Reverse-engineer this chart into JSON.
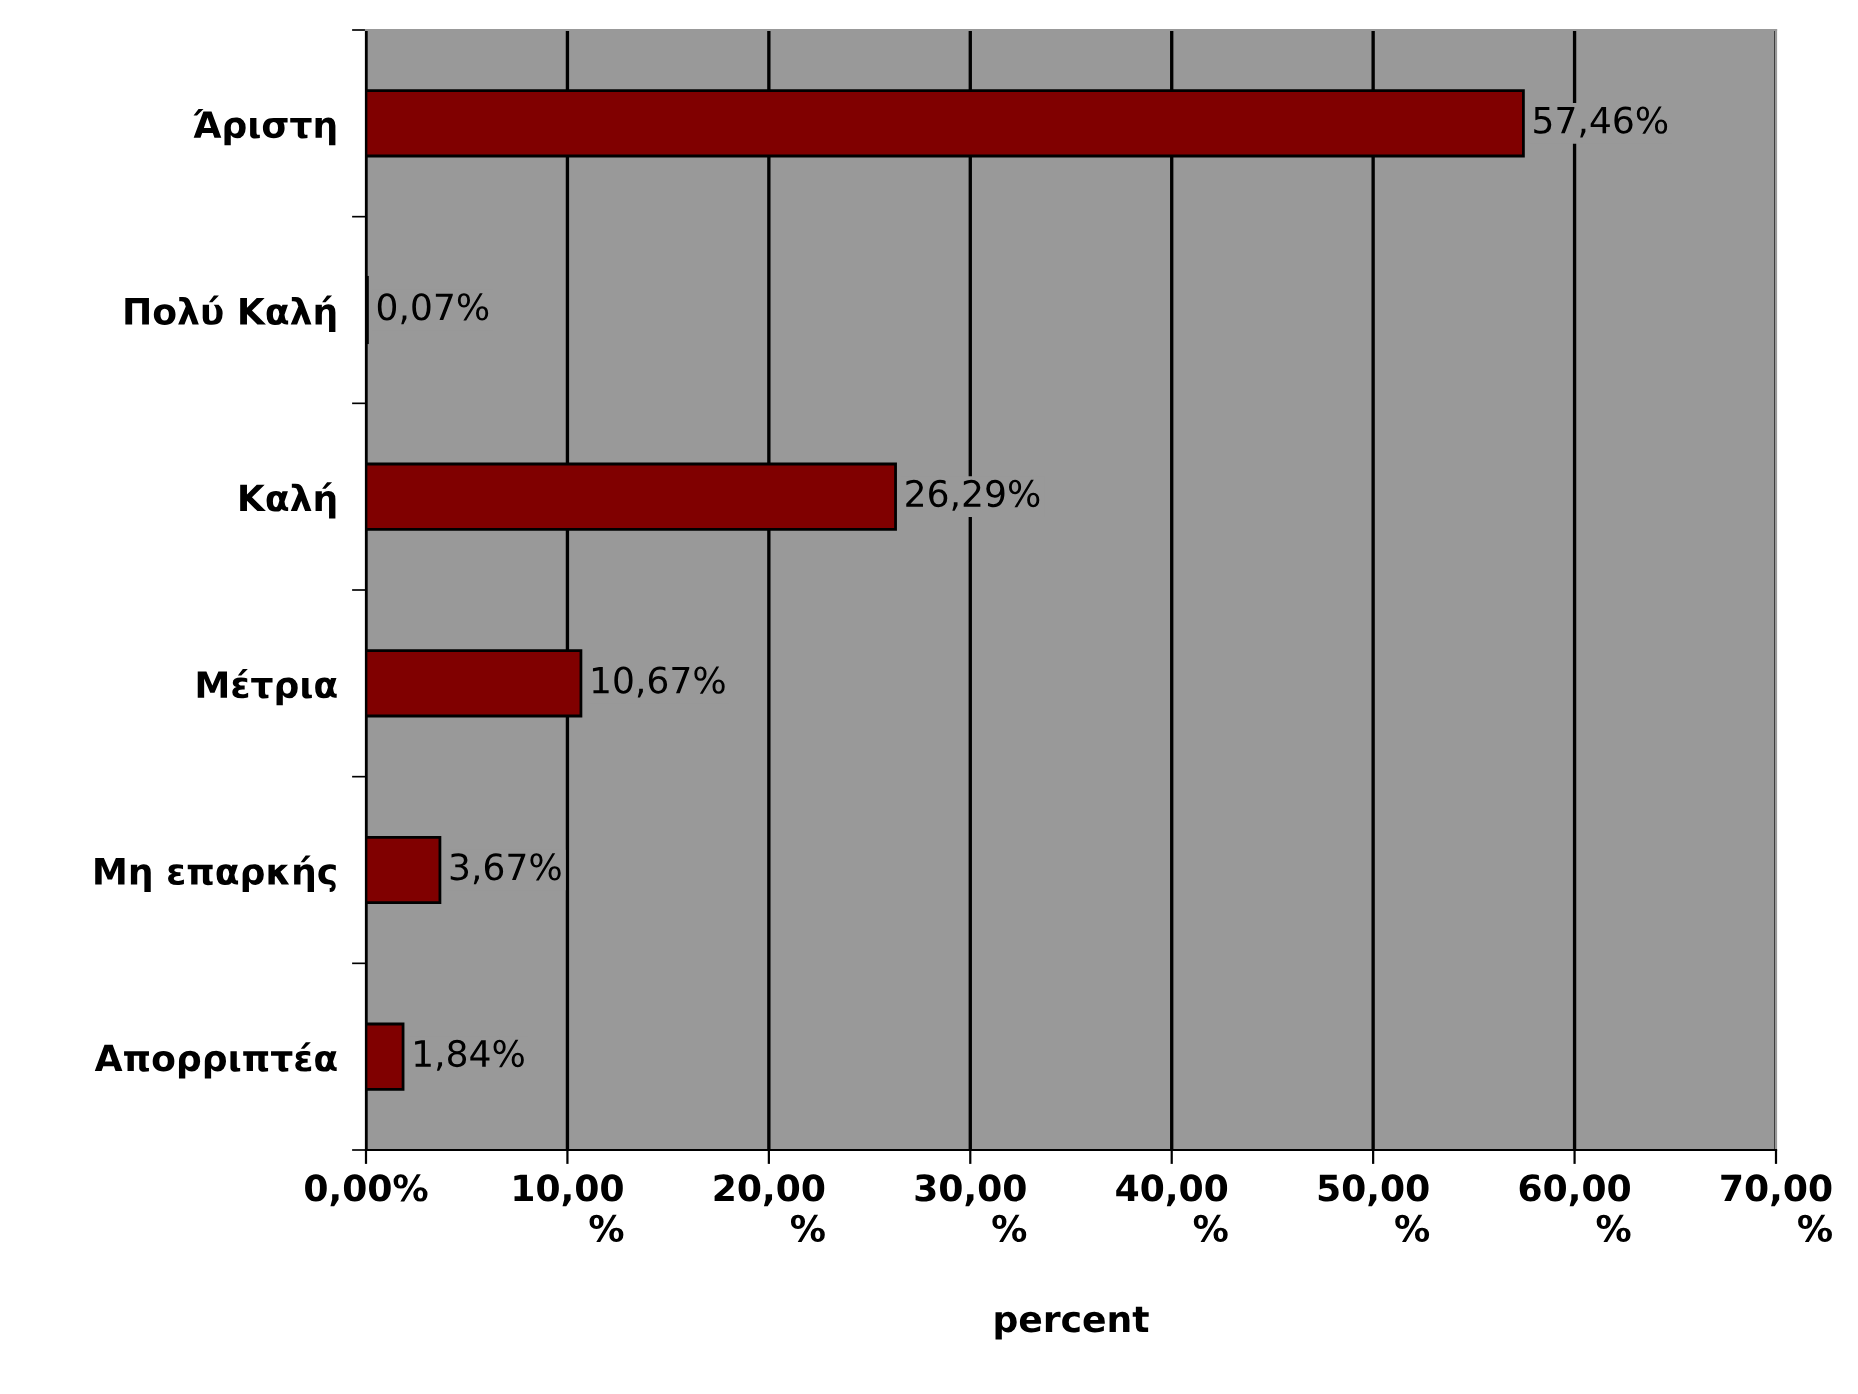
{
  "chart_data": {
    "type": "bar",
    "orientation": "horizontal",
    "xlabel": "percent",
    "categories": [
      "Άριστη",
      "Πολύ Καλή",
      "Καλή",
      "Μέτρια",
      "Μη επαρκής",
      "Απορριπτέα"
    ],
    "values": [
      57.46,
      0.07,
      26.29,
      10.67,
      3.67,
      1.84
    ],
    "value_labels": [
      "57,46%",
      "0,07%",
      "26,29%",
      "10,67%",
      "3,67%",
      "1,84%"
    ],
    "color": "#800000",
    "xlim": [
      0,
      70
    ],
    "xticks": [
      {
        "value": 0,
        "label": "0,00%"
      },
      {
        "value": 10,
        "label": "10,00\n%"
      },
      {
        "value": 20,
        "label": "20,00\n%"
      },
      {
        "value": 30,
        "label": "30,00\n%"
      },
      {
        "value": 40,
        "label": "40,00\n%"
      },
      {
        "value": 50,
        "label": "50,00\n%"
      },
      {
        "value": 60,
        "label": "60,00\n%"
      },
      {
        "value": 70,
        "label": "70,00\n%"
      }
    ],
    "grid": "x"
  }
}
